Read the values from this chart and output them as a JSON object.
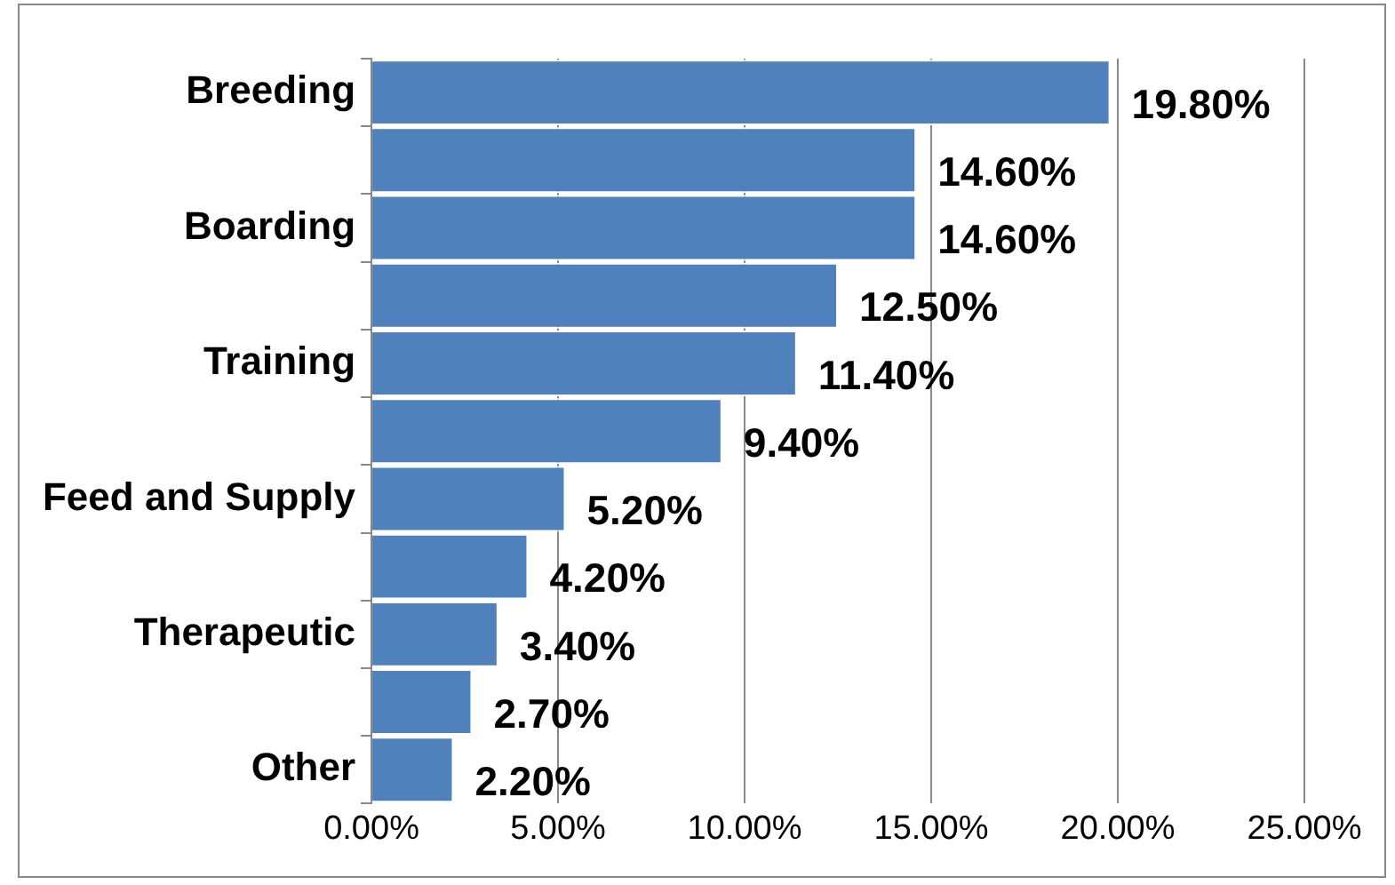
{
  "chart_data": {
    "type": "bar",
    "orientation": "horizontal",
    "categories": [
      "Breeding",
      null,
      "Boarding",
      null,
      "Training",
      null,
      "Feed and Supply",
      null,
      "Therapeutic",
      null,
      "Other"
    ],
    "values": [
      19.8,
      14.6,
      14.6,
      12.5,
      11.4,
      9.4,
      5.2,
      4.2,
      3.4,
      2.7,
      2.2
    ],
    "value_labels": [
      "19.80%",
      "14.60%",
      "14.60%",
      "12.50%",
      "11.40%",
      "9.40%",
      "5.20%",
      "4.20%",
      "3.40%",
      "2.70%",
      "2.20%"
    ],
    "color": "#4f81bd",
    "xlim": [
      0,
      25
    ],
    "xticks": [
      {
        "value": 0,
        "label": "0.00%"
      },
      {
        "value": 5,
        "label": "5.00%"
      },
      {
        "value": 10,
        "label": "10.00%"
      },
      {
        "value": 15,
        "label": "15.00%"
      },
      {
        "value": 20,
        "label": "20.00%"
      },
      {
        "value": 25,
        "label": "25.00%"
      }
    ],
    "grid": "x",
    "legend": false
  }
}
